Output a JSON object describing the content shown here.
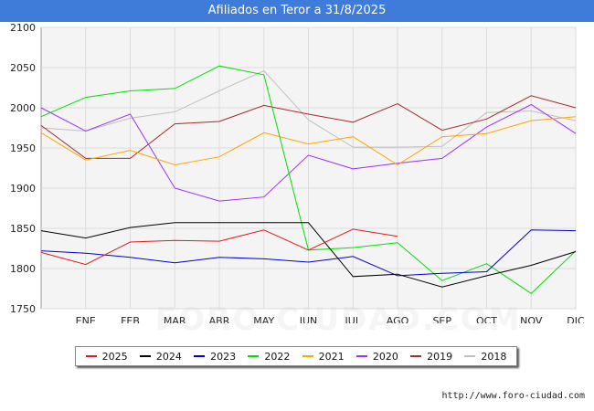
{
  "header": {
    "title": "Afiliados en Teror a 31/8/2025"
  },
  "footer": {
    "url": "http://www.foro-ciudad.com"
  },
  "watermark": "FORO-CIUDAD.COM",
  "colors": {
    "header_bg": "#3f7bd8",
    "plot_bg": "#f4f4f4",
    "grid": "#dddddd"
  },
  "chart_data": {
    "type": "line",
    "title": "Afiliados en Teror a 31/8/2025",
    "x": [
      "",
      "ENE",
      "FEB",
      "MAR",
      "ABR",
      "MAY",
      "JUN",
      "JUL",
      "AGO",
      "SEP",
      "OCT",
      "NOV",
      "DIC"
    ],
    "ylim": [
      1750,
      2100
    ],
    "yticks": [
      1750,
      1800,
      1850,
      1900,
      1950,
      2000,
      2050,
      2100
    ],
    "grid": true,
    "legend_position": "bottom",
    "series": [
      {
        "name": "2025",
        "color": "#e31a1c",
        "values": [
          1820,
          1805,
          1833,
          1835,
          1834,
          1848,
          1823,
          1849,
          1840,
          null,
          null,
          null,
          null
        ]
      },
      {
        "name": "2024",
        "color": "#000000",
        "values": [
          1847,
          1838,
          1851,
          1857,
          1857,
          1857,
          1857,
          1790,
          1793,
          1777,
          1791,
          1804,
          1821
        ]
      },
      {
        "name": "2023",
        "color": "#0000cc",
        "values": [
          1822,
          1819,
          1814,
          1807,
          1814,
          1812,
          1808,
          1815,
          1791,
          1794,
          1796,
          1848,
          1847
        ]
      },
      {
        "name": "2022",
        "color": "#00e000",
        "values": [
          1989,
          2013,
          2021,
          2024,
          2052,
          2041,
          1823,
          1826,
          1832,
          1785,
          1806,
          1769,
          1822
        ]
      },
      {
        "name": "2021",
        "color": "#ffa500",
        "values": [
          1969,
          1935,
          1947,
          1929,
          1939,
          1969,
          1955,
          1964,
          1929,
          1964,
          1968,
          1984,
          1989
        ]
      },
      {
        "name": "2020",
        "color": "#9b30ff",
        "values": [
          2000,
          1971,
          1992,
          1900,
          1884,
          1889,
          1941,
          1924,
          1931,
          1937,
          1976,
          2004,
          1968
        ]
      },
      {
        "name": "2019",
        "color": "#a52a2a",
        "values": [
          1978,
          1937,
          1937,
          1980,
          1983,
          2003,
          1992,
          1982,
          2005,
          1972,
          1986,
          2015,
          2000
        ]
      },
      {
        "name": "2018",
        "color": "#c0c0c0",
        "values": [
          1975,
          1971,
          1987,
          1995,
          2021,
          2046,
          1985,
          1951,
          1951,
          1952,
          1994,
          1996,
          1984
        ]
      }
    ]
  }
}
